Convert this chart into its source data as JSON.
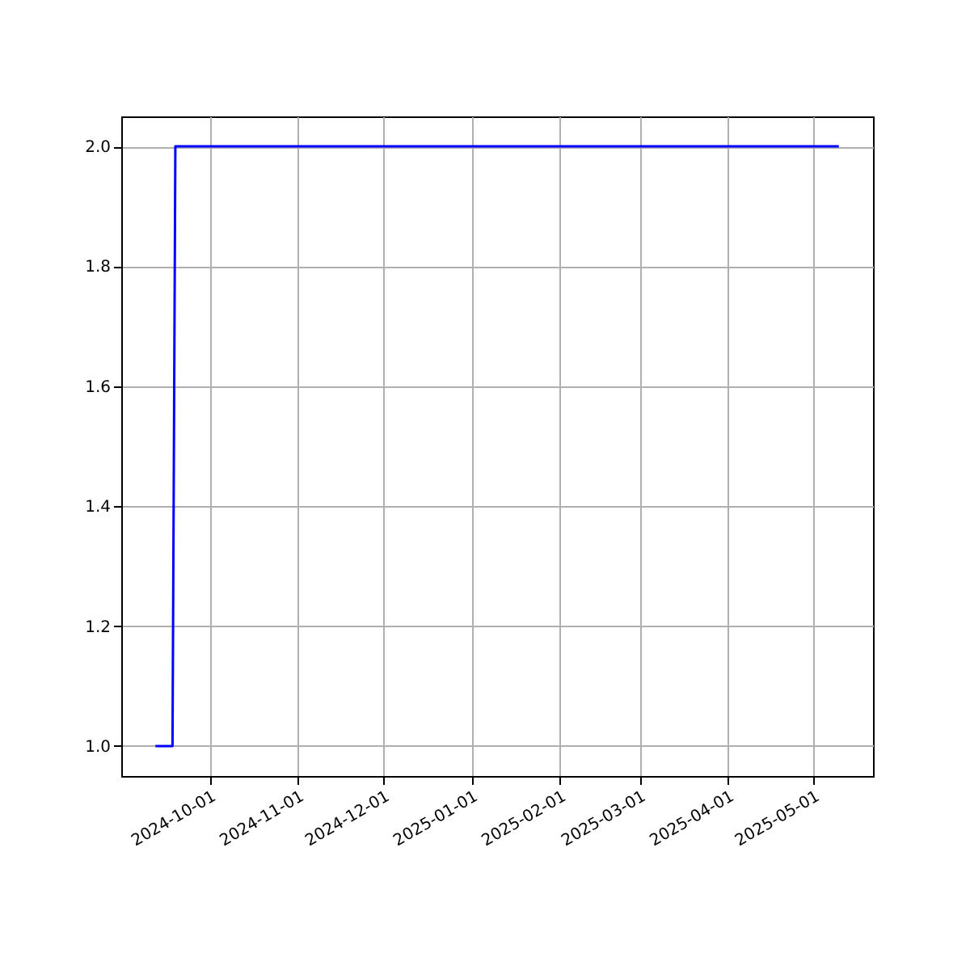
{
  "chart_data": {
    "type": "line",
    "x": [
      "2024-09-12",
      "2024-09-18",
      "2024-09-19",
      "2025-05-10"
    ],
    "series": [
      {
        "color": "#0000ff",
        "values": [
          1.0,
          1.0,
          2.0,
          2.0
        ]
      }
    ],
    "xlim": [
      "2024-08-31",
      "2025-05-22"
    ],
    "xticks": [
      "2024-10-01",
      "2024-11-01",
      "2024-12-01",
      "2025-01-01",
      "2025-02-01",
      "2025-03-01",
      "2025-04-01",
      "2025-05-01"
    ],
    "ylim": [
      0.95,
      2.05
    ],
    "yticks": [
      {
        "value": 1.0,
        "label": "1.0"
      },
      {
        "value": 1.2,
        "label": "1.2"
      },
      {
        "value": 1.4,
        "label": "1.4"
      },
      {
        "value": 1.6,
        "label": "1.6"
      },
      {
        "value": 1.8,
        "label": "1.8"
      },
      {
        "value": 2.0,
        "label": "2.0"
      }
    ],
    "grid": true
  }
}
